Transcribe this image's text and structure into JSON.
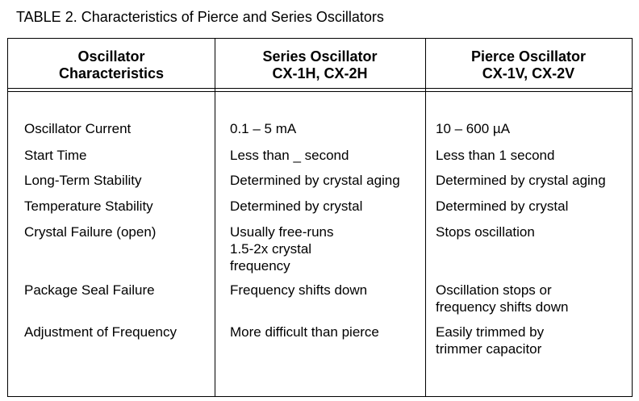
{
  "title": "TABLE 2. Characteristics of Pierce and Series Oscillators",
  "headers": [
    [
      "Oscillator",
      "Characteristics"
    ],
    [
      "Series Oscillator",
      "CX-1H, CX-2H"
    ],
    [
      "Pierce Oscillator",
      "CX-1V, CX-2V"
    ]
  ],
  "rows": [
    {
      "label": "Oscillator Current",
      "series": [
        "0.1 – 5 mA"
      ],
      "pierce": [
        "10 – 600 µA"
      ]
    },
    {
      "label": "Start Time",
      "series": [
        "Less than _ second"
      ],
      "pierce": [
        "Less than 1 second"
      ]
    },
    {
      "label": "Long-Term Stability",
      "series": [
        "Determined by crystal aging"
      ],
      "pierce": [
        "Determined by crystal aging"
      ]
    },
    {
      "label": "Temperature Stability",
      "series": [
        "Determined by crystal"
      ],
      "pierce": [
        "Determined by crystal"
      ]
    },
    {
      "label": "Crystal Failure (open)",
      "series": [
        "Usually free-runs",
        "1.5-2x crystal",
        "frequency"
      ],
      "pierce": [
        "Stops oscillation"
      ]
    },
    {
      "label": "Package Seal Failure",
      "series": [
        "Frequency shifts down"
      ],
      "pierce": [
        "Oscillation stops or",
        "frequency shifts down"
      ]
    },
    {
      "label": "Adjustment of Frequency",
      "series": [
        "More difficult than pierce"
      ],
      "pierce": [
        "Easily trimmed by",
        "trimmer capacitor"
      ]
    }
  ]
}
